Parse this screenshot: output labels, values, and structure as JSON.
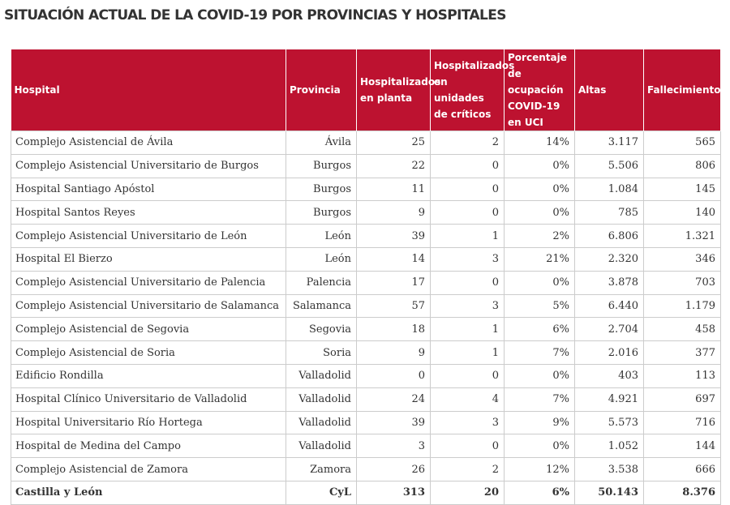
{
  "header": {
    "title": "SITUACIÓN ACTUAL DE LA COVID-19 POR PROVINCIAS Y HOSPITALES"
  },
  "table": {
    "columns": [
      "Hospital",
      "Provincia",
      "Hospitalizados en planta",
      "Hospitalizados en unidades de críticos",
      "Porcentaje de ocupación COVID-19 en UCI",
      "Altas",
      "Fallecimientos"
    ],
    "rows": [
      [
        "Complejo Asistencial de Ávila",
        "Ávila",
        "25",
        "2",
        "14%",
        "3.117",
        "565"
      ],
      [
        "Complejo Asistencial Universitario de Burgos",
        "Burgos",
        "22",
        "0",
        "0%",
        "5.506",
        "806"
      ],
      [
        "Hospital Santiago Apóstol",
        "Burgos",
        "11",
        "0",
        "0%",
        "1.084",
        "145"
      ],
      [
        "Hospital Santos Reyes",
        "Burgos",
        "9",
        "0",
        "0%",
        "785",
        "140"
      ],
      [
        "Complejo Asistencial Universitario de León",
        "León",
        "39",
        "1",
        "2%",
        "6.806",
        "1.321"
      ],
      [
        "Hospital El Bierzo",
        "León",
        "14",
        "3",
        "21%",
        "2.320",
        "346"
      ],
      [
        "Complejo Asistencial Universitario de Palencia",
        "Palencia",
        "17",
        "0",
        "0%",
        "3.878",
        "703"
      ],
      [
        "Complejo Asistencial Universitario de Salamanca",
        "Salamanca",
        "57",
        "3",
        "5%",
        "6.440",
        "1.179"
      ],
      [
        "Complejo Asistencial de Segovia",
        "Segovia",
        "18",
        "1",
        "6%",
        "2.704",
        "458"
      ],
      [
        "Complejo Asistencial de Soria",
        "Soria",
        "9",
        "1",
        "7%",
        "2.016",
        "377"
      ],
      [
        "Edificio Rondilla",
        "Valladolid",
        "0",
        "0",
        "0%",
        "403",
        "113"
      ],
      [
        "Hospital Clínico Universitario de Valladolid",
        "Valladolid",
        "24",
        "4",
        "7%",
        "4.921",
        "697"
      ],
      [
        "Hospital Universitario Río Hortega",
        "Valladolid",
        "39",
        "3",
        "9%",
        "5.573",
        "716"
      ],
      [
        "Hospital de Medina del Campo",
        "Valladolid",
        "3",
        "0",
        "0%",
        "1.052",
        "144"
      ],
      [
        "Complejo Asistencial de Zamora",
        "Zamora",
        "26",
        "2",
        "12%",
        "3.538",
        "666"
      ]
    ],
    "total": [
      "Castilla y León",
      "CyL",
      "313",
      "20",
      "6%",
      "50.143",
      "8.376"
    ]
  }
}
